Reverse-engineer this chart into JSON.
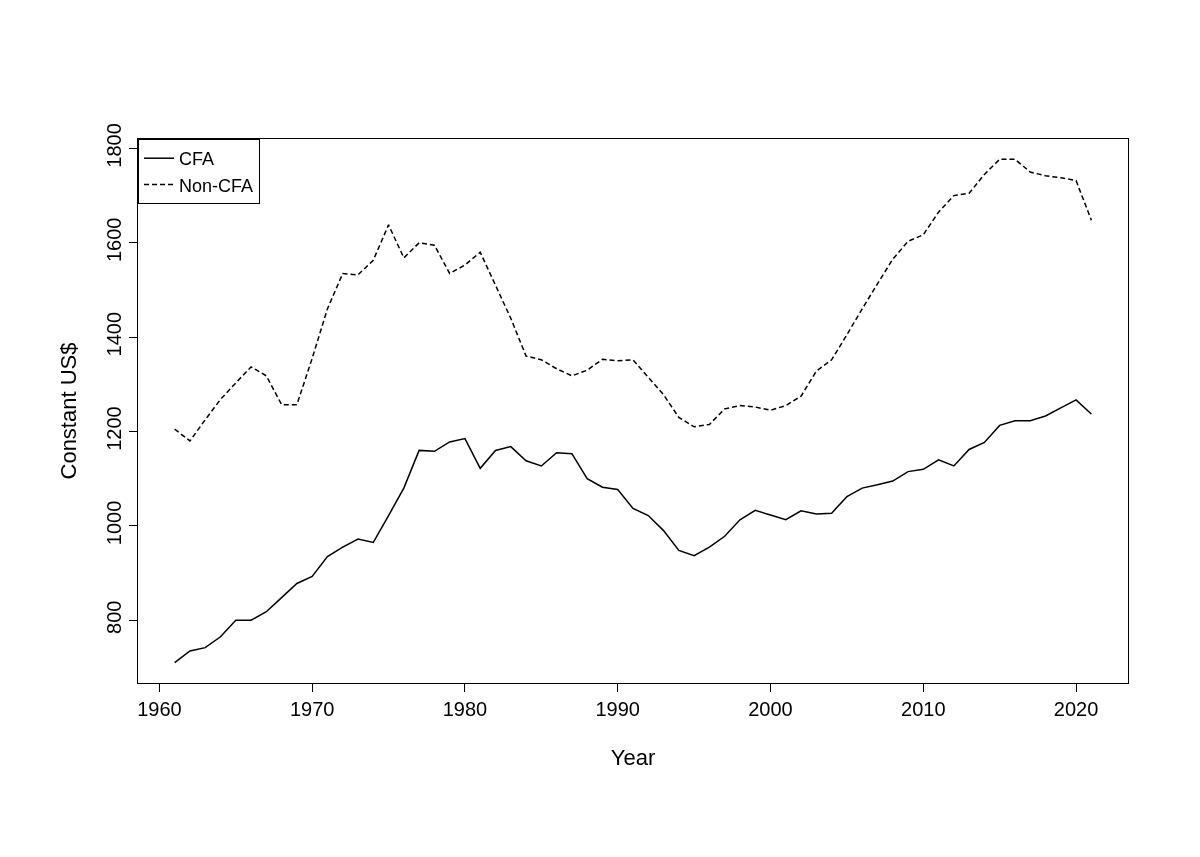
{
  "chart_data": {
    "type": "line",
    "xlabel": "Year",
    "ylabel": "Constant US$",
    "x": [
      1961,
      1962,
      1963,
      1964,
      1965,
      1966,
      1967,
      1968,
      1969,
      1970,
      1971,
      1972,
      1973,
      1974,
      1975,
      1976,
      1977,
      1978,
      1979,
      1980,
      1981,
      1982,
      1983,
      1984,
      1985,
      1986,
      1987,
      1988,
      1989,
      1990,
      1991,
      1992,
      1993,
      1994,
      1995,
      1996,
      1997,
      1998,
      1999,
      2000,
      2001,
      2002,
      2003,
      2004,
      2005,
      2006,
      2007,
      2008,
      2009,
      2010,
      2011,
      2012,
      2013,
      2014,
      2015,
      2016,
      2017,
      2018,
      2019,
      2020,
      2021
    ],
    "series": [
      {
        "name": "CFA",
        "color": "#000000",
        "line_style": "solid",
        "values": [
          710,
          735,
          742,
          765,
          800,
          800,
          818,
          848,
          878,
          893,
          935,
          955,
          972,
          965,
          1022,
          1080,
          1160,
          1158,
          1178,
          1185,
          1122,
          1160,
          1168,
          1138,
          1127,
          1155,
          1153,
          1100,
          1082,
          1077,
          1037,
          1022,
          990,
          948,
          937,
          955,
          978,
          1013,
          1033,
          1023,
          1013,
          1032,
          1025,
          1027,
          1062,
          1080,
          1087,
          1095,
          1115,
          1120,
          1140,
          1127,
          1162,
          1177,
          1213,
          1223,
          1223,
          1233,
          1250,
          1267,
          1237
        ]
      },
      {
        "name": "Non-CFA",
        "color": "#000000",
        "line_style": "dashed",
        "values": [
          1205,
          1180,
          1225,
          1268,
          1303,
          1337,
          1318,
          1257,
          1257,
          1355,
          1460,
          1535,
          1532,
          1563,
          1638,
          1568,
          1600,
          1595,
          1535,
          1553,
          1580,
          1510,
          1440,
          1360,
          1352,
          1333,
          1318,
          1330,
          1353,
          1350,
          1352,
          1315,
          1278,
          1230,
          1210,
          1215,
          1248,
          1255,
          1252,
          1245,
          1255,
          1275,
          1328,
          1352,
          1405,
          1460,
          1513,
          1565,
          1603,
          1617,
          1665,
          1700,
          1705,
          1745,
          1777,
          1777,
          1750,
          1742,
          1738,
          1732,
          1648
        ]
      }
    ],
    "xlim": [
      1958.6,
      2023.4
    ],
    "ylim": [
      667,
      1820
    ],
    "xticks": [
      1960,
      1970,
      1980,
      1990,
      2000,
      2010,
      2020
    ],
    "yticks": [
      800,
      1000,
      1200,
      1400,
      1600,
      1800
    ],
    "grid": false,
    "legend": "top left",
    "marker": "none"
  }
}
